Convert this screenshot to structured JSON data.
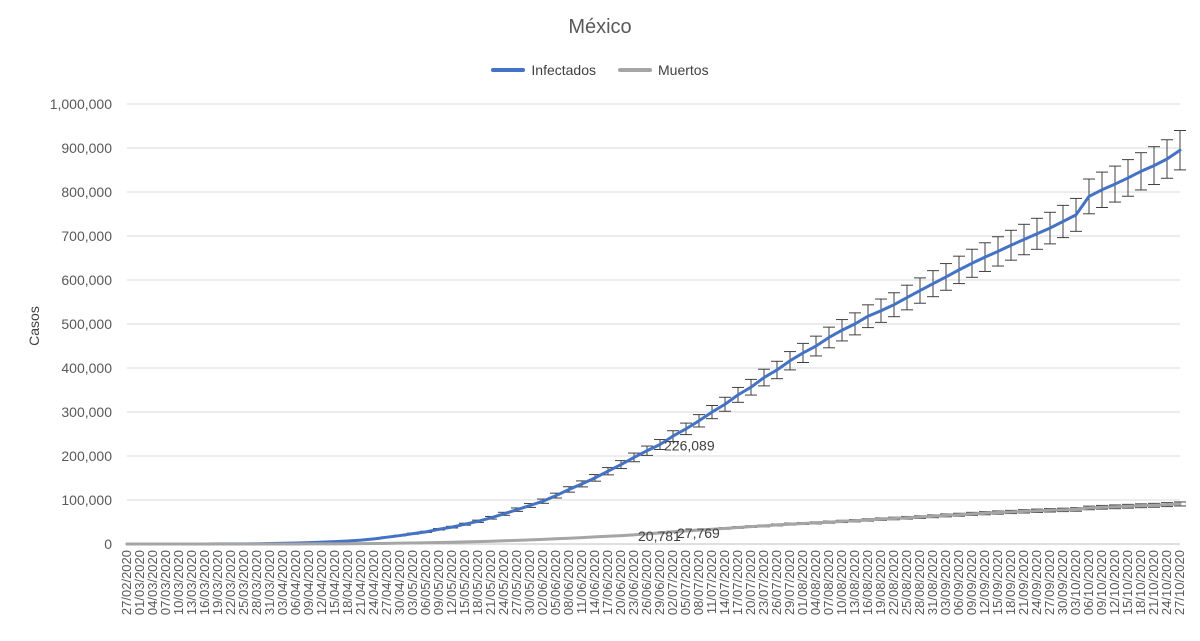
{
  "chart_data": {
    "type": "line",
    "title": "México",
    "xlabel": "",
    "ylabel": "Casos",
    "ylim": [
      0,
      1000000
    ],
    "yticks": [
      "0",
      "100,000",
      "200,000",
      "300,000",
      "400,000",
      "500,000",
      "600,000",
      "700,000",
      "800,000",
      "900,000",
      "1,000,000"
    ],
    "grid": true,
    "legend_position": "top",
    "x_tick_labels": [
      "27/02/2020",
      "01/03/2020",
      "04/03/2020",
      "07/03/2020",
      "10/03/2020",
      "13/03/2020",
      "16/03/2020",
      "19/03/2020",
      "22/03/2020",
      "25/03/2020",
      "28/03/2020",
      "31/03/2020",
      "03/04/2020",
      "06/04/2020",
      "09/04/2020",
      "12/04/2020",
      "15/04/2020",
      "18/04/2020",
      "21/04/2020",
      "24/04/2020",
      "27/04/2020",
      "30/04/2020",
      "03/05/2020",
      "06/05/2020",
      "09/05/2020",
      "12/05/2020",
      "15/05/2020",
      "18/05/2020",
      "21/05/2020",
      "24/05/2020",
      "27/05/2020",
      "30/05/2020",
      "02/06/2020",
      "05/06/2020",
      "08/06/2020",
      "11/06/2020",
      "14/06/2020",
      "17/06/2020",
      "20/06/2020",
      "23/06/2020",
      "26/06/2020",
      "29/06/2020",
      "02/07/2020",
      "05/07/2020",
      "08/07/2020",
      "11/07/2020",
      "14/07/2020",
      "17/07/2020",
      "20/07/2020",
      "23/07/2020",
      "26/07/2020",
      "29/07/2020",
      "01/08/2020",
      "04/08/2020",
      "07/08/2020",
      "10/08/2020",
      "13/08/2020",
      "16/08/2020",
      "19/08/2020",
      "22/08/2020",
      "25/08/2020",
      "28/08/2020",
      "31/08/2020",
      "03/09/2020",
      "06/09/2020",
      "09/09/2020",
      "12/09/2020",
      "15/09/2020",
      "18/09/2020",
      "21/09/2020",
      "24/09/2020",
      "27/09/2020",
      "30/09/2020",
      "03/10/2020",
      "06/10/2020",
      "09/10/2020",
      "12/10/2020",
      "15/10/2020",
      "18/10/2020",
      "21/10/2020",
      "24/10/2020",
      "27/10/2020"
    ],
    "series": [
      {
        "name": "Infectados",
        "color": "#4472C4",
        "error_bars": true,
        "values": [
          0,
          5,
          5,
          7,
          10,
          20,
          80,
          160,
          300,
          400,
          700,
          1100,
          1700,
          2400,
          3200,
          4200,
          5500,
          6900,
          8800,
          11600,
          15500,
          19200,
          23500,
          27600,
          33500,
          38300,
          45000,
          51600,
          59600,
          68600,
          78000,
          87500,
          97300,
          110000,
          124000,
          136600,
          150300,
          165400,
          180500,
          196800,
          212000,
          226100,
          245200,
          261700,
          280000,
          299800,
          317600,
          338900,
          356300,
          378300,
          395500,
          416500,
          434200,
          449900,
          469400,
          485800,
          500300,
          517700,
          530200,
          543800,
          560200,
          576000,
          591700,
          607000,
          623000,
          638000,
          652000,
          665000,
          679000,
          692000,
          705000,
          718000,
          733000,
          748000,
          790000,
          805000,
          818000,
          832000,
          847000,
          860000,
          875000,
          895000
        ]
      },
      {
        "name": "Muertos",
        "color": "#A5A5A5",
        "error_bars": true,
        "values": [
          0,
          0,
          0,
          0,
          0,
          0,
          0,
          1,
          3,
          6,
          16,
          30,
          60,
          120,
          190,
          300,
          400,
          550,
          800,
          1100,
          1400,
          1900,
          2300,
          2800,
          3300,
          3900,
          4700,
          5400,
          6300,
          7300,
          8100,
          9400,
          10400,
          12000,
          13100,
          14600,
          16100,
          17600,
          19000,
          20800,
          23300,
          25100,
          27769,
          29800,
          31600,
          33500,
          35500,
          37600,
          39500,
          41200,
          43400,
          45300,
          46600,
          48000,
          49700,
          51300,
          53000,
          54700,
          56500,
          58000,
          59600,
          61000,
          63000,
          65000,
          66500,
          68500,
          70000,
          71500,
          72800,
          74200,
          75500,
          76600,
          77500,
          78500,
          82000,
          83500,
          84500,
          85800,
          86900,
          88000,
          89500,
          91000
        ]
      }
    ],
    "annotations": [
      {
        "text": "226,089",
        "x": "29/06/2020",
        "y": 226089
      },
      {
        "text": "20,781",
        "x": "23/06/2020",
        "y": 20781
      },
      {
        "text": "27,769",
        "x": "02/07/2020",
        "y": 27769
      }
    ]
  }
}
